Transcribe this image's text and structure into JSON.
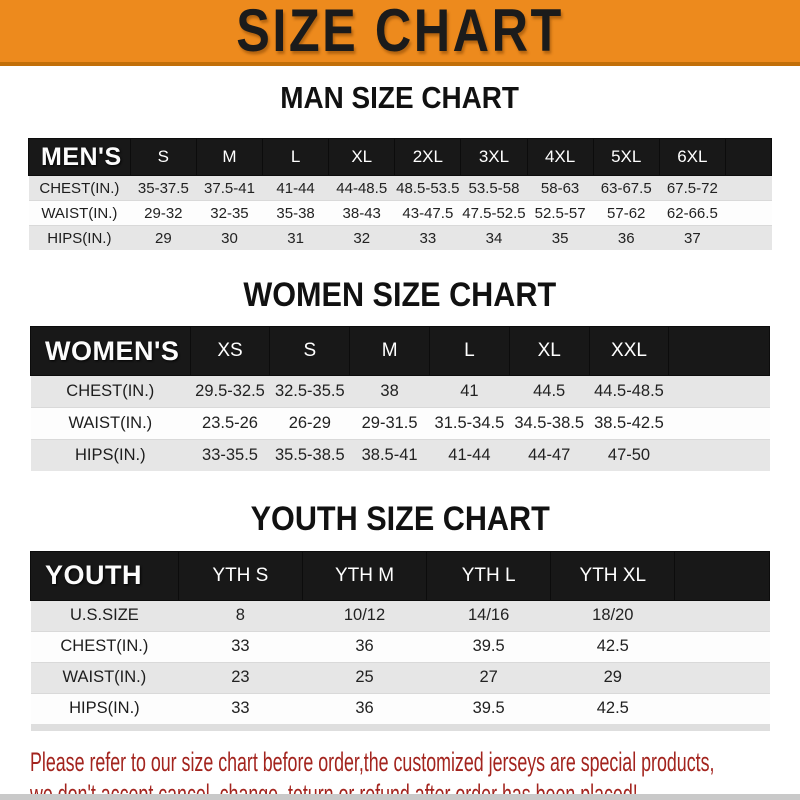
{
  "banner": {
    "title": "SIZE CHART"
  },
  "colors": {
    "banner_bg": "#ed8a1d",
    "banner_border": "#c26f08",
    "header_bar_bg": "#181818",
    "row_alt_gray": "#e6e6e6",
    "notice_red": "#a3241e"
  },
  "chart_data": [
    {
      "type": "table",
      "title": "MAN SIZE CHART",
      "label": "MEN'S",
      "columns": [
        "S",
        "M",
        "L",
        "XL",
        "2XL",
        "3XL",
        "4XL",
        "5XL",
        "6XL"
      ],
      "rows": [
        {
          "label": "CHEST(IN.)",
          "values": [
            "35-37.5",
            "37.5-41",
            "41-44",
            "44-48.5",
            "48.5-53.5",
            "53.5-58",
            "58-63",
            "63-67.5",
            "67.5-72"
          ]
        },
        {
          "label": "WAIST(IN.)",
          "values": [
            "29-32",
            "32-35",
            "35-38",
            "38-43",
            "43-47.5",
            "47.5-52.5",
            "52.5-57",
            "57-62",
            "62-66.5"
          ]
        },
        {
          "label": "HIPS(IN.)",
          "values": [
            "29",
            "30",
            "31",
            "32",
            "33",
            "34",
            "35",
            "36",
            "37"
          ]
        }
      ]
    },
    {
      "type": "table",
      "title": "WOMEN SIZE CHART",
      "label": "WOMEN'S",
      "columns": [
        "XS",
        "S",
        "M",
        "L",
        "XL",
        "XXL"
      ],
      "rows": [
        {
          "label": "CHEST(IN.)",
          "values": [
            "29.5-32.5",
            "32.5-35.5",
            "38",
            "41",
            "44.5",
            "44.5-48.5"
          ]
        },
        {
          "label": "WAIST(IN.)",
          "values": [
            "23.5-26",
            "26-29",
            "29-31.5",
            "31.5-34.5",
            "34.5-38.5",
            "38.5-42.5"
          ]
        },
        {
          "label": "HIPS(IN.)",
          "values": [
            "33-35.5",
            "35.5-38.5",
            "38.5-41",
            "41-44",
            "44-47",
            "47-50"
          ]
        }
      ]
    },
    {
      "type": "table",
      "title": "YOUTH SIZE CHART",
      "label": "YOUTH",
      "columns": [
        "YTH S",
        "YTH M",
        "YTH L",
        "YTH XL"
      ],
      "rows": [
        {
          "label": "U.S.SIZE",
          "values": [
            "8",
            "10/12",
            "14/16",
            "18/20"
          ]
        },
        {
          "label": "CHEST(IN.)",
          "values": [
            "33",
            "36",
            "39.5",
            "42.5"
          ]
        },
        {
          "label": "WAIST(IN.)",
          "values": [
            "23",
            "25",
            "27",
            "29"
          ]
        },
        {
          "label": "HIPS(IN.)",
          "values": [
            "33",
            "36",
            "39.5",
            "42.5"
          ]
        }
      ]
    }
  ],
  "footer": {
    "line1": "Please refer to our size chart before order,the customized jerseys are special products,",
    "line2": "we don't accept cancel, change, teturn or refund after order has been placed!"
  }
}
